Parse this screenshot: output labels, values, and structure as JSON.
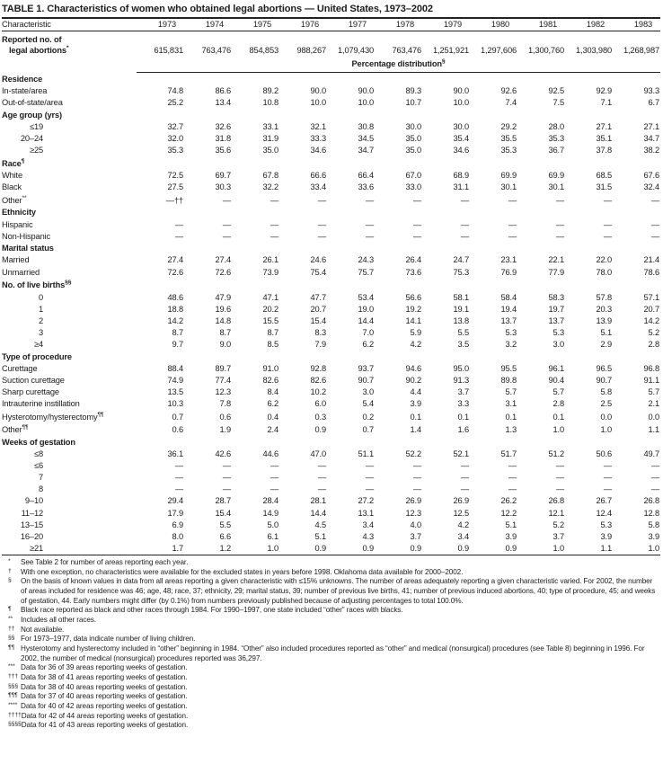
{
  "title": "TABLE 1. Characteristics of women who obtained legal abortions — United States, 1973–2002",
  "header": {
    "characteristic": "Characteristic",
    "years": [
      "1973",
      "1974",
      "1975",
      "1976",
      "1977",
      "1978",
      "1979",
      "1980",
      "1981",
      "1982",
      "1983"
    ]
  },
  "reported_row": {
    "label_line1": "Reported no. of",
    "label_line2": "legal abortions",
    "sup": "*",
    "values": [
      "615,831",
      "763,476",
      "854,853",
      "988,267",
      "1,079,430",
      "763,476",
      "1,251,921",
      "1,297,606",
      "1,300,760",
      "1,303,980",
      "1,268,987"
    ]
  },
  "spanner": {
    "text": "Percentage distribution",
    "sup": "§"
  },
  "sections": [
    {
      "header": "Residence",
      "sup": "",
      "rows": [
        {
          "label": "In-state/area",
          "sup": "",
          "indent": 1,
          "values": [
            "74.8",
            "86.6",
            "89.2",
            "90.0",
            "90.0",
            "89.3",
            "90.0",
            "92.6",
            "92.5",
            "92.9",
            "93.3"
          ]
        },
        {
          "label": "Out-of-state/area",
          "sup": "",
          "indent": 1,
          "values": [
            "25.2",
            "13.4",
            "10.8",
            "10.0",
            "10.0",
            "10.7",
            "10.0",
            "7.4",
            "7.5",
            "7.1",
            "6.7"
          ]
        }
      ]
    },
    {
      "header": "Age group (yrs)",
      "sup": "",
      "rows": [
        {
          "label": "≤19",
          "sup": "",
          "indent": "num",
          "values": [
            "32.7",
            "32.6",
            "33.1",
            "32.1",
            "30.8",
            "30.0",
            "30.0",
            "29.2",
            "28.0",
            "27.1",
            "27.1"
          ]
        },
        {
          "label": "20–24",
          "sup": "",
          "indent": "num",
          "values": [
            "32.0",
            "31.8",
            "31.9",
            "33.3",
            "34.5",
            "35.0",
            "35.4",
            "35.5",
            "35.3",
            "35.1",
            "34.7"
          ]
        },
        {
          "label": "≥25",
          "sup": "",
          "indent": "num",
          "values": [
            "35.3",
            "35.6",
            "35.0",
            "34.6",
            "34.7",
            "35.0",
            "34.6",
            "35.3",
            "36.7",
            "37.8",
            "38.2"
          ]
        }
      ]
    },
    {
      "header": "Race",
      "sup": "¶",
      "rows": [
        {
          "label": "White",
          "sup": "",
          "indent": 1,
          "values": [
            "72.5",
            "69.7",
            "67.8",
            "66.6",
            "66.4",
            "67.0",
            "68.9",
            "69.9",
            "69.9",
            "68.5",
            "67.6"
          ]
        },
        {
          "label": "Black",
          "sup": "",
          "indent": 1,
          "values": [
            "27.5",
            "30.3",
            "32.2",
            "33.4",
            "33.6",
            "33.0",
            "31.1",
            "30.1",
            "30.1",
            "31.5",
            "32.4"
          ]
        },
        {
          "label": "Other",
          "sup": "**",
          "indent": 1,
          "values": [
            "—††",
            "—",
            "—",
            "—",
            "—",
            "—",
            "—",
            "—",
            "—",
            "—",
            "—"
          ]
        }
      ]
    },
    {
      "header": "Ethnicity",
      "sup": "",
      "rows": [
        {
          "label": "Hispanic",
          "sup": "",
          "indent": 1,
          "values": [
            "—",
            "—",
            "—",
            "—",
            "—",
            "—",
            "—",
            "—",
            "—",
            "—",
            "—"
          ]
        },
        {
          "label": "Non-Hispanic",
          "sup": "",
          "indent": 1,
          "values": [
            "—",
            "—",
            "—",
            "—",
            "—",
            "—",
            "—",
            "—",
            "—",
            "—",
            "—"
          ]
        }
      ]
    },
    {
      "header": "Marital status",
      "sup": "",
      "rows": [
        {
          "label": "Married",
          "sup": "",
          "indent": 1,
          "values": [
            "27.4",
            "27.4",
            "26.1",
            "24.6",
            "24.3",
            "26.4",
            "24.7",
            "23.1",
            "22.1",
            "22.0",
            "21.4"
          ]
        },
        {
          "label": "Unmarried",
          "sup": "",
          "indent": 1,
          "values": [
            "72.6",
            "72.6",
            "73.9",
            "75.4",
            "75.7",
            "73.6",
            "75.3",
            "76.9",
            "77.9",
            "78.0",
            "78.6"
          ]
        }
      ]
    },
    {
      "header": "No. of live births",
      "sup": "§§",
      "rows": [
        {
          "label": "0",
          "sup": "",
          "indent": "num",
          "values": [
            "48.6",
            "47.9",
            "47.1",
            "47.7",
            "53.4",
            "56.6",
            "58.1",
            "58.4",
            "58.3",
            "57.8",
            "57.1"
          ]
        },
        {
          "label": "1",
          "sup": "",
          "indent": "num",
          "values": [
            "18.8",
            "19.6",
            "20.2",
            "20.7",
            "19.0",
            "19.2",
            "19.1",
            "19.4",
            "19.7",
            "20.3",
            "20.7"
          ]
        },
        {
          "label": "2",
          "sup": "",
          "indent": "num",
          "values": [
            "14.2",
            "14.8",
            "15.5",
            "15.4",
            "14.4",
            "14.1",
            "13.8",
            "13.7",
            "13.7",
            "13.9",
            "14.2"
          ]
        },
        {
          "label": "3",
          "sup": "",
          "indent": "num",
          "values": [
            "8.7",
            "8.7",
            "8.7",
            "8.3",
            "7.0",
            "5.9",
            "5.5",
            "5.3",
            "5.3",
            "5.1",
            "5.2"
          ]
        },
        {
          "label": "≥4",
          "sup": "",
          "indent": "num",
          "values": [
            "9.7",
            "9.0",
            "8.5",
            "7.9",
            "6.2",
            "4.2",
            "3.5",
            "3.2",
            "3.0",
            "2.9",
            "2.8"
          ]
        }
      ]
    },
    {
      "header": "Type of procedure",
      "sup": "",
      "rows": [
        {
          "label": "Curettage",
          "sup": "",
          "indent": 1,
          "values": [
            "88.4",
            "89.7",
            "91.0",
            "92.8",
            "93.7",
            "94.6",
            "95.0",
            "95.5",
            "96.1",
            "96.5",
            "96.8"
          ]
        },
        {
          "label": "Suction curettage",
          "sup": "",
          "indent": 2,
          "values": [
            "74.9",
            "77.4",
            "82.6",
            "82.6",
            "90.7",
            "90.2",
            "91.3",
            "89.8",
            "90.4",
            "90.7",
            "91.1"
          ]
        },
        {
          "label": "Sharp curettage",
          "sup": "",
          "indent": 2,
          "values": [
            "13.5",
            "12.3",
            "8.4",
            "10.2",
            "3.0",
            "4.4",
            "3.7",
            "5.7",
            "5.7",
            "5.8",
            "5.7"
          ]
        },
        {
          "label": "Intrauterine instillation",
          "sup": "",
          "indent": 1,
          "values": [
            "10.3",
            "7.8",
            "6.2",
            "6.0",
            "5.4",
            "3.9",
            "3.3",
            "3.1",
            "2.8",
            "2.5",
            "2.1"
          ]
        },
        {
          "label": "Hysterotomy/hysterectomy",
          "sup": "¶¶",
          "indent": 1,
          "values": [
            "0.7",
            "0.6",
            "0.4",
            "0.3",
            "0.2",
            "0.1",
            "0.1",
            "0.1",
            "0.1",
            "0.0",
            "0.0"
          ]
        },
        {
          "label": "Other",
          "sup": "¶¶",
          "indent": 1,
          "values": [
            "0.6",
            "1.9",
            "2.4",
            "0.9",
            "0.7",
            "1.4",
            "1.6",
            "1.3",
            "1.0",
            "1.0",
            "1.1"
          ]
        }
      ]
    },
    {
      "header": "Weeks of gestation",
      "sup": "",
      "rows": [
        {
          "label": "≤8",
          "sup": "",
          "indent": "num",
          "values": [
            "36.1",
            "42.6",
            "44.6",
            "47.0",
            "51.1",
            "52.2",
            "52.1",
            "51.7",
            "51.2",
            "50.6",
            "49.7"
          ]
        },
        {
          "label": "≤6",
          "sup": "",
          "indent": "num",
          "values": [
            "—",
            "—",
            "—",
            "—",
            "—",
            "—",
            "—",
            "—",
            "—",
            "—",
            "—"
          ]
        },
        {
          "label": "7",
          "sup": "",
          "indent": "num",
          "values": [
            "—",
            "—",
            "—",
            "—",
            "—",
            "—",
            "—",
            "—",
            "—",
            "—",
            "—"
          ]
        },
        {
          "label": "8",
          "sup": "",
          "indent": "num",
          "values": [
            "—",
            "—",
            "—",
            "—",
            "—",
            "—",
            "—",
            "—",
            "—",
            "—",
            "—"
          ]
        },
        {
          "label": "9–10",
          "sup": "",
          "indent": "num",
          "values": [
            "29.4",
            "28.7",
            "28.4",
            "28.1",
            "27.2",
            "26.9",
            "26.9",
            "26.2",
            "26.8",
            "26.7",
            "26.8"
          ]
        },
        {
          "label": "11–12",
          "sup": "",
          "indent": "num",
          "values": [
            "17.9",
            "15.4",
            "14.9",
            "14.4",
            "13.1",
            "12.3",
            "12.5",
            "12.2",
            "12.1",
            "12.4",
            "12.8"
          ]
        },
        {
          "label": "13–15",
          "sup": "",
          "indent": "num",
          "values": [
            "6.9",
            "5.5",
            "5.0",
            "4.5",
            "3.4",
            "4.0",
            "4.2",
            "5.1",
            "5.2",
            "5.3",
            "5.8"
          ]
        },
        {
          "label": "16–20",
          "sup": "",
          "indent": "num",
          "values": [
            "8.0",
            "6.6",
            "6.1",
            "5.1",
            "4.3",
            "3.7",
            "3.4",
            "3.9",
            "3.7",
            "3.9",
            "3.9"
          ]
        },
        {
          "label": "≥21",
          "sup": "",
          "indent": "num",
          "values": [
            "1.7",
            "1.2",
            "1.0",
            "0.9",
            "0.9",
            "0.9",
            "0.9",
            "0.9",
            "1.0",
            "1.1",
            "1.0"
          ]
        }
      ]
    }
  ],
  "footnotes": [
    {
      "marker": "*",
      "text": "See Table 2 for number of areas reporting each year."
    },
    {
      "marker": "†",
      "text": "With one exception, no characteristics were available for the excluded states in years before 1998. Oklahoma data available for 2000–2002."
    },
    {
      "marker": "§",
      "text": "On the basis of known values in data from all areas reporting a given characteristic with ≤15% unknowns. The number of areas adequately reporting a given characteristic varied. For 2002, the number of areas included for residence was 46; age, 48; race, 37; ethnicity, 29; marital status, 39; number of previous live births, 41; number of previous induced abortions, 40; type of procedure, 45; and weeks of gestation, 44. Early numbers might differ (by 0.1%) from numbers previously published because of adjusting percentages to total 100.0%."
    },
    {
      "marker": "¶",
      "text": "Black race reported as black and other races through 1984. For 1990–1997, one state included “other” races with blacks."
    },
    {
      "marker": "**",
      "text": "Includes all other races."
    },
    {
      "marker": "††",
      "text": "Not available."
    },
    {
      "marker": "§§",
      "text": "For 1973–1977, data indicate number of living children."
    },
    {
      "marker": "¶¶",
      "text": "Hysterotomy and hysterectomy included in “other” beginning in 1984. “Other” also included procedures reported as “other” and medical (nonsurgical) procedures (see Table 8) beginning in 1996. For 2002, the number of medical (nonsurgical) procedures reported was 36,297."
    },
    {
      "marker": "***",
      "text": "Data for 36 of 39 areas reporting weeks of gestation."
    },
    {
      "marker": "†††",
      "text": "Data for 38 of 41 areas reporting weeks of gestation."
    },
    {
      "marker": "§§§",
      "text": "Data for 38 of 40 areas reporting weeks of gestation."
    },
    {
      "marker": "¶¶¶",
      "text": "Data for 37 of 40 areas reporting weeks of gestation."
    },
    {
      "marker": "****",
      "text": "Data for 40 of 42 areas reporting weeks of gestation."
    },
    {
      "marker": "††††",
      "text": "Data for 42 of 44 areas reporting weeks of gestation."
    },
    {
      "marker": "§§§§",
      "text": "Data for 41 of 43 areas reporting weeks of gestation."
    }
  ]
}
